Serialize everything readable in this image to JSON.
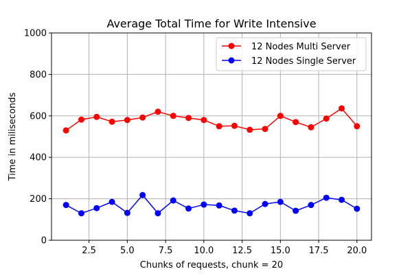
{
  "chart_data": {
    "type": "line",
    "title": "Average Total Time for Write Intensive",
    "xlabel": "Chunks of requests, chunk = 20",
    "ylabel": "Time in miliseconds",
    "xlim": [
      0.05,
      20.95
    ],
    "ylim": [
      0,
      1000
    ],
    "xticks": [
      2.5,
      5.0,
      7.5,
      10.0,
      12.5,
      15.0,
      17.5,
      20.0
    ],
    "xtick_labels": [
      "2.5",
      "5.0",
      "7.5",
      "10.0",
      "12.5",
      "15.0",
      "17.5",
      "20.0"
    ],
    "yticks": [
      0,
      200,
      400,
      600,
      800,
      1000
    ],
    "ytick_labels": [
      "0",
      "200",
      "400",
      "600",
      "800",
      "1000"
    ],
    "grid": true,
    "legend_position": "top-right",
    "x": [
      1,
      2,
      3,
      4,
      5,
      6,
      7,
      8,
      9,
      10,
      11,
      12,
      13,
      14,
      15,
      16,
      17,
      18,
      19,
      20
    ],
    "series": [
      {
        "name": "12 Nodes Multi Server",
        "color": "#ff0000",
        "values": [
          530,
          582,
          595,
          572,
          580,
          592,
          620,
          600,
          590,
          580,
          550,
          552,
          533,
          537,
          600,
          570,
          545,
          587,
          636,
          550
        ]
      },
      {
        "name": "12 Nodes Single Server",
        "color": "#0000ff",
        "values": [
          170,
          130,
          155,
          185,
          132,
          218,
          130,
          192,
          153,
          172,
          168,
          143,
          130,
          175,
          185,
          142,
          170,
          205,
          195,
          152
        ]
      }
    ]
  }
}
